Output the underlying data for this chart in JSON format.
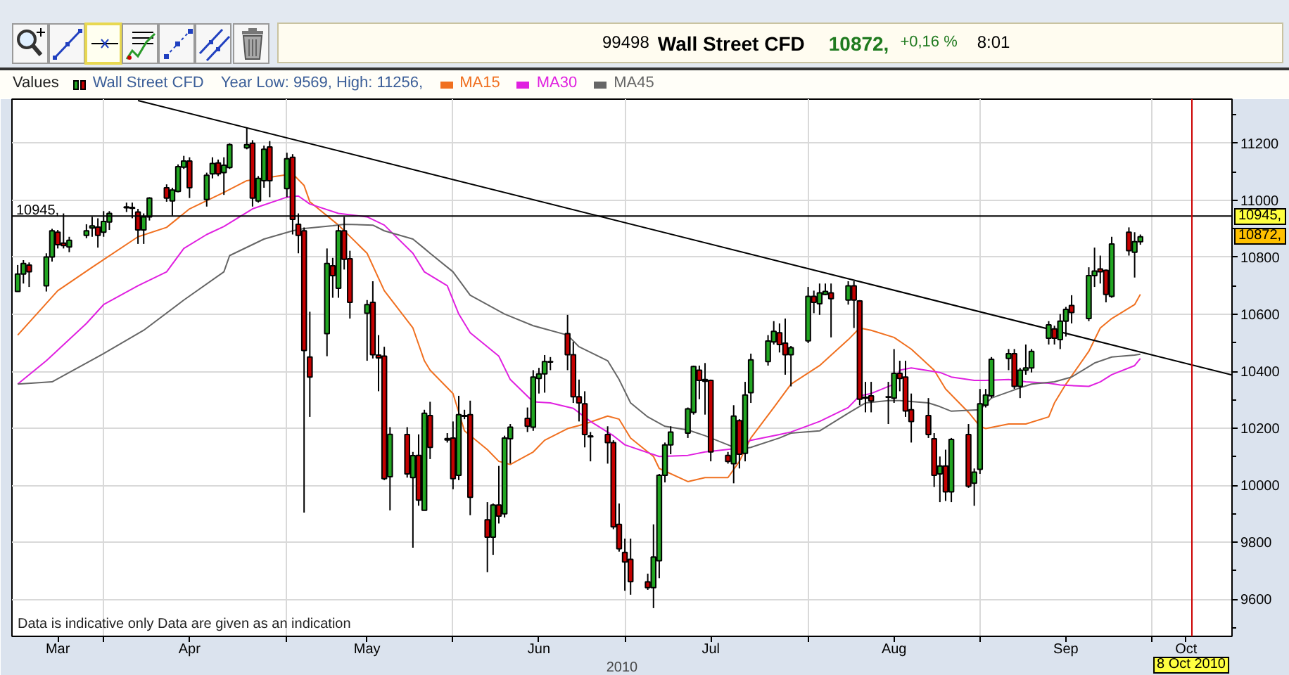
{
  "chart_data": {
    "type": "candlestick",
    "title": "Wall Street CFD",
    "subtitle": "Year Low: 9569, High: 11256,",
    "legend_title": "Values",
    "xlabel": "2010",
    "xlim": [
      "2010-03-16",
      "2010-10-15"
    ],
    "ylim": [
      9470,
      11355
    ],
    "xticks": [
      {
        "value": "2010-03-24",
        "label": "Mar"
      },
      {
        "value": "2010-04-01",
        "label": null
      },
      {
        "value": "2010-04-16",
        "label": "Apr"
      },
      {
        "value": "2010-05-03",
        "label": null
      },
      {
        "value": "2010-05-17",
        "label": "May"
      },
      {
        "value": "2010-06-01",
        "label": null
      },
      {
        "value": "2010-06-16",
        "label": "Jun"
      },
      {
        "value": "2010-07-01",
        "label": null
      },
      {
        "value": "2010-07-16",
        "label": "Jul"
      },
      {
        "value": "2010-08-02",
        "label": null
      },
      {
        "value": "2010-08-17",
        "label": "Aug"
      },
      {
        "value": "2010-09-01",
        "label": null
      },
      {
        "value": "2010-09-16",
        "label": "Sep"
      },
      {
        "value": "2010-10-01",
        "label": null
      },
      {
        "value": "2010-10-07",
        "label": "Oct"
      }
    ],
    "yticks": [
      9600,
      9800,
      10000,
      10200,
      10400,
      10600,
      10800,
      11000,
      11200
    ],
    "grid": true,
    "legend": "top left",
    "series": [
      {
        "name": "Wall Street CFD",
        "x": [
          "2010-03-17",
          "2010-03-18",
          "2010-03-19",
          "2010-03-22",
          "2010-03-23",
          "2010-03-24",
          "2010-03-25",
          "2010-03-26",
          "2010-03-29",
          "2010-03-30",
          "2010-03-31",
          "2010-04-01",
          "2010-04-02",
          "2010-04-05",
          "2010-04-06",
          "2010-04-07",
          "2010-04-08",
          "2010-04-09",
          "2010-04-12",
          "2010-04-13",
          "2010-04-14",
          "2010-04-15",
          "2010-04-16",
          "2010-04-19",
          "2010-04-20",
          "2010-04-21",
          "2010-04-22",
          "2010-04-23",
          "2010-04-26",
          "2010-04-27",
          "2010-04-28",
          "2010-04-29",
          "2010-04-30",
          "2010-05-03",
          "2010-05-04",
          "2010-05-05",
          "2010-05-06",
          "2010-05-07",
          "2010-05-10",
          "2010-05-11",
          "2010-05-12",
          "2010-05-13",
          "2010-05-14",
          "2010-05-17",
          "2010-05-18",
          "2010-05-19",
          "2010-05-20",
          "2010-05-21",
          "2010-05-24",
          "2010-05-25",
          "2010-05-26",
          "2010-05-27",
          "2010-05-28",
          "2010-05-31",
          "2010-06-01",
          "2010-06-02",
          "2010-06-03",
          "2010-06-04",
          "2010-06-07",
          "2010-06-08",
          "2010-06-09",
          "2010-06-10",
          "2010-06-11",
          "2010-06-14",
          "2010-06-15",
          "2010-06-16",
          "2010-06-17",
          "2010-06-18",
          "2010-06-21",
          "2010-06-22",
          "2010-06-23",
          "2010-06-24",
          "2010-06-25",
          "2010-06-28",
          "2010-06-29",
          "2010-06-30",
          "2010-07-01",
          "2010-07-02",
          "2010-07-05",
          "2010-07-06",
          "2010-07-07",
          "2010-07-08",
          "2010-07-09",
          "2010-07-12",
          "2010-07-13",
          "2010-07-14",
          "2010-07-15",
          "2010-07-16",
          "2010-07-19",
          "2010-07-20",
          "2010-07-21",
          "2010-07-22",
          "2010-07-23",
          "2010-07-26",
          "2010-07-27",
          "2010-07-28",
          "2010-07-29",
          "2010-07-30",
          "2010-08-02",
          "2010-08-03",
          "2010-08-04",
          "2010-08-05",
          "2010-08-06",
          "2010-08-09",
          "2010-08-10",
          "2010-08-11",
          "2010-08-12",
          "2010-08-13",
          "2010-08-16",
          "2010-08-17",
          "2010-08-18",
          "2010-08-19",
          "2010-08-20",
          "2010-08-23",
          "2010-08-24",
          "2010-08-25",
          "2010-08-26",
          "2010-08-27",
          "2010-08-30",
          "2010-08-31",
          "2010-09-01",
          "2010-09-02",
          "2010-09-03",
          "2010-09-06",
          "2010-09-07",
          "2010-09-08",
          "2010-09-09",
          "2010-09-10",
          "2010-09-13",
          "2010-09-14",
          "2010-09-15",
          "2010-09-16",
          "2010-09-17",
          "2010-09-20",
          "2010-09-21",
          "2010-09-22",
          "2010-09-23",
          "2010-09-24",
          "2010-09-27",
          "2010-09-28",
          "2010-09-29"
        ],
        "ohlc": [
          [
            10680,
            10773,
            10680,
            10741
          ],
          [
            10741,
            10790,
            10708,
            10778
          ],
          [
            10773,
            10782,
            10696,
            10749
          ],
          [
            10700,
            10814,
            10680,
            10801
          ],
          [
            10801,
            10900,
            10785,
            10893
          ],
          [
            10888,
            10896,
            10831,
            10844
          ],
          [
            10850,
            10954,
            10831,
            10841
          ],
          [
            10836,
            10872,
            10818,
            10860
          ],
          [
            10877,
            10916,
            10867,
            10893
          ],
          [
            10903,
            10942,
            10872,
            10910
          ],
          [
            10906,
            10937,
            10834,
            10877
          ],
          [
            10888,
            10962,
            10872,
            10926
          ],
          [
            10924,
            10962,
            10896,
            10954
          ],
          [
            10977,
            10992,
            10959,
            10974
          ],
          [
            10975,
            10992,
            10937,
            10972
          ],
          [
            10959,
            10970,
            10847,
            10896
          ],
          [
            10896,
            10954,
            10847,
            10942
          ],
          [
            10942,
            11011,
            10929,
            11008
          ],
          [
            11044,
            11056,
            10995,
            11008
          ],
          [
            10998,
            11044,
            10946,
            11036
          ],
          [
            11031,
            11126,
            11028,
            11118
          ],
          [
            11116,
            11156,
            11110,
            11138
          ],
          [
            11138,
            11151,
            11008,
            11044
          ],
          [
            11003,
            11097,
            10978,
            11088
          ],
          [
            11093,
            11151,
            11077,
            11129
          ],
          [
            11131,
            11143,
            11085,
            11093
          ],
          [
            11097,
            11151,
            11019,
            11123
          ],
          [
            11115,
            11200,
            11110,
            11195
          ],
          [
            11184,
            11256,
            11179,
            11195
          ],
          [
            11200,
            11211,
            10978,
            11008
          ],
          [
            10998,
            11085,
            10992,
            11077
          ],
          [
            11069,
            11192,
            11044,
            11179
          ],
          [
            11187,
            11208,
            11011,
            11069
          ],
          [
            11041,
            11167,
            11011,
            11146
          ],
          [
            11151,
            11162,
            10880,
            10933
          ],
          [
            10916,
            10954,
            10814,
            10877
          ],
          [
            10893,
            10905,
            9904,
            10473
          ],
          [
            10450,
            10609,
            10240,
            10380
          ],
          [
            10532,
            10831,
            10453,
            10778
          ],
          [
            10770,
            10798,
            10658,
            10736
          ],
          [
            10691,
            10913,
            10658,
            10893
          ],
          [
            10893,
            10942,
            10757,
            10793
          ],
          [
            10795,
            10823,
            10585,
            10642
          ],
          [
            10604,
            10650,
            10437,
            10634
          ],
          [
            10642,
            10716,
            10445,
            10458
          ],
          [
            10457,
            10527,
            10330,
            10447
          ],
          [
            10453,
            10486,
            10018,
            10023
          ],
          [
            10030,
            10204,
            9912,
            10179
          ],
          [
            10178,
            10204,
            10027,
            10040
          ],
          [
            10027,
            10117,
            9781,
            10104
          ],
          [
            10105,
            10179,
            9928,
            9948
          ],
          [
            9912,
            10265,
            9912,
            10253
          ],
          [
            10245,
            10293,
            10092,
            10133
          ],
          [
            10164,
            10183,
            10150,
            10159
          ],
          [
            10166,
            10224,
            9986,
            10023
          ],
          [
            10035,
            10314,
            10018,
            10248
          ],
          [
            10245,
            10265,
            10232,
            10242
          ],
          [
            10248,
            10297,
            9895,
            9958
          ],
          [
            9879,
            9941,
            9695,
            9818
          ],
          [
            9818,
            9936,
            9756,
            9931
          ],
          [
            9931,
            10068,
            9866,
            9892
          ],
          [
            9900,
            10174,
            9887,
            10166
          ],
          [
            10163,
            10215,
            10076,
            10204
          ],
          [
            10235,
            10273,
            10187,
            10207
          ],
          [
            10204,
            10404,
            10191,
            10380
          ],
          [
            10375,
            10412,
            10322,
            10391
          ],
          [
            10391,
            10457,
            10325,
            10434
          ],
          [
            10434,
            10450,
            10404,
            10432
          ],
          [
            10532,
            10598,
            10404,
            10458
          ],
          [
            10458,
            10503,
            10289,
            10311
          ],
          [
            10311,
            10371,
            10224,
            10289
          ],
          [
            10286,
            10330,
            10133,
            10178
          ],
          [
            10173,
            10187,
            10084,
            10170
          ],
          [
            10178,
            10207,
            10076,
            10150
          ],
          [
            10150,
            10158,
            9846,
            9854
          ],
          [
            9863,
            9936,
            9767,
            9777
          ],
          [
            9764,
            9813,
            9630,
            9731
          ],
          [
            9740,
            9813,
            9616,
            9662
          ],
          [
            9661,
            9690,
            9633,
            9641
          ],
          [
            9641,
            9863,
            9569,
            9748
          ],
          [
            9735,
            10040,
            9674,
            10035
          ],
          [
            10035,
            10150,
            10010,
            10142
          ],
          [
            10142,
            10207,
            10109,
            10187
          ],
          [
            10183,
            10273,
            10166,
            10268
          ],
          [
            10256,
            10420,
            10248,
            10417
          ],
          [
            10404,
            10420,
            10302,
            10368
          ],
          [
            10371,
            10429,
            10248,
            10365
          ],
          [
            10368,
            10371,
            10084,
            10117
          ],
          [
            10105,
            10117,
            10076,
            10084
          ],
          [
            10076,
            10281,
            10007,
            10243
          ],
          [
            10227,
            10232,
            10059,
            10109
          ],
          [
            10112,
            10363,
            10084,
            10317
          ],
          [
            10325,
            10462,
            10289,
            10440
          ],
          [
            10434,
            10527,
            10420,
            10506
          ],
          [
            10503,
            10576,
            10494,
            10540
          ],
          [
            10535,
            10568,
            10466,
            10494
          ],
          [
            10499,
            10585,
            10388,
            10458
          ],
          [
            10458,
            10489,
            10347,
            10483
          ],
          [
            10507,
            10696,
            10499,
            10663
          ],
          [
            10663,
            10683,
            10604,
            10642
          ],
          [
            10637,
            10708,
            10598,
            10675
          ],
          [
            10670,
            10708,
            10667,
            10680
          ],
          [
            10675,
            10708,
            10519,
            10655
          ],
          [
            10650,
            10716,
            10634,
            10700
          ],
          [
            10700,
            10716,
            10552,
            10650
          ],
          [
            10647,
            10650,
            10281,
            10302
          ],
          [
            10309,
            10363,
            10256,
            10306
          ],
          [
            10314,
            10363,
            10256,
            10296
          ],
          [
            10309,
            10363,
            10215,
            10311
          ],
          [
            10306,
            10478,
            10289,
            10393
          ],
          [
            10393,
            10437,
            10330,
            10375
          ],
          [
            10380,
            10437,
            10240,
            10261
          ],
          [
            10265,
            10322,
            10150,
            10224
          ],
          [
            10245,
            10306,
            10166,
            10178
          ],
          [
            10163,
            10183,
            9994,
            10035
          ],
          [
            10040,
            10101,
            9941,
            10068
          ],
          [
            10068,
            10125,
            9945,
            9977
          ],
          [
            9977,
            10166,
            9941,
            10161
          ],
          [
            10178,
            10215,
            9991,
            9997
          ],
          [
            10007,
            10059,
            9928,
            10046
          ],
          [
            10056,
            10338,
            10040,
            10286
          ],
          [
            10281,
            10338,
            10273,
            10317
          ],
          [
            10314,
            10450,
            10306,
            10442
          ],
          [
            10445,
            10478,
            10404,
            10462
          ],
          [
            10462,
            10478,
            10338,
            10347
          ],
          [
            10347,
            10412,
            10306,
            10404
          ],
          [
            10404,
            10494,
            10388,
            10412
          ],
          [
            10412,
            10478,
            10396,
            10470
          ],
          [
            10516,
            10576,
            10494,
            10563
          ],
          [
            10549,
            10560,
            10494,
            10516
          ],
          [
            10511,
            10601,
            10478,
            10576
          ],
          [
            10576,
            10626,
            10522,
            10617
          ],
          [
            10631,
            10667,
            10568,
            10606
          ],
          [
            10585,
            10765,
            10576,
            10736
          ],
          [
            10736,
            10834,
            10696,
            10752
          ],
          [
            10759,
            10806,
            10708,
            10749
          ],
          [
            10754,
            10757,
            10642,
            10670
          ],
          [
            10663,
            10872,
            10658,
            10847
          ],
          [
            10888,
            10905,
            10806,
            10823
          ],
          [
            10818,
            10888,
            10729,
            10855
          ],
          [
            10855,
            10880,
            10844,
            10872
          ]
        ],
        "colors": [
          "#22a622",
          "#22a622",
          "#c40000",
          "#22a622",
          "#22a622",
          "#c40000",
          "#c40000",
          "#22a622",
          "#22a622",
          "#22a622",
          "#c40000",
          "#22a622",
          "#22a622",
          "#000000",
          "#000000",
          "#c40000",
          "#22a622",
          "#22a622",
          "#c40000",
          "#22a622",
          "#22a622",
          "#22a622",
          "#c40000",
          "#22a622",
          "#22a622",
          "#c40000",
          "#22a622",
          "#22a622",
          "#22a622",
          "#c40000",
          "#22a622",
          "#22a622",
          "#c40000",
          "#22a622",
          "#c40000",
          "#c40000",
          "#c40000",
          "#c40000",
          "#22a622",
          "#c40000",
          "#22a622",
          "#c40000",
          "#c40000",
          "#22a622",
          "#c40000",
          "#c40000",
          "#c40000",
          "#22a622",
          "#c40000",
          "#22a622",
          "#c40000",
          "#22a622",
          "#c40000",
          "#000000",
          "#c40000",
          "#22a622",
          "#000000",
          "#c40000",
          "#c40000",
          "#22a622",
          "#c40000",
          "#22a622",
          "#22a622",
          "#c40000",
          "#22a622",
          "#22a622",
          "#22a622",
          "#000000",
          "#c40000",
          "#c40000",
          "#c40000",
          "#c40000",
          "#000000",
          "#c40000",
          "#c40000",
          "#c40000",
          "#c40000",
          "#c40000",
          "#c40000",
          "#22a622",
          "#22a622",
          "#22a622",
          "#22a622",
          "#22a622",
          "#22a622",
          "#c40000",
          "#000000",
          "#c40000",
          "#c40000",
          "#22a622",
          "#c40000",
          "#22a622",
          "#22a622",
          "#22a622",
          "#22a622",
          "#c40000",
          "#c40000",
          "#22a622",
          "#22a622",
          "#c40000",
          "#22a622",
          "#22a622",
          "#c40000",
          "#22a622",
          "#c40000",
          "#c40000",
          "#000000",
          "#c40000",
          "#000000",
          "#22a622",
          "#c40000",
          "#c40000",
          "#c40000",
          "#c40000",
          "#c40000",
          "#22a622",
          "#c40000",
          "#22a622",
          "#c40000",
          "#22a622",
          "#22a622",
          "#22a622",
          "#22a622",
          "#22a622",
          "#c40000",
          "#22a622",
          "#22a622",
          "#22a622",
          "#22a622",
          "#c40000",
          "#22a622",
          "#22a622",
          "#c40000",
          "#22a622",
          "#22a622",
          "#c40000",
          "#c40000",
          "#22a622",
          "#c40000",
          "#22a622",
          "#22a622"
        ]
      },
      {
        "type": "line",
        "name": "MA15",
        "color": "#f07020",
        "x": [
          "2010-03-17",
          "2010-03-24",
          "2010-03-30",
          "2010-04-07",
          "2010-04-12",
          "2010-04-16",
          "2010-04-22",
          "2010-04-26",
          "2010-05-04",
          "2010-05-06",
          "2010-05-07",
          "2010-05-12",
          "2010-05-17",
          "2010-05-20",
          "2010-05-25",
          "2010-05-27",
          "2010-05-28",
          "2010-06-01",
          "2010-06-03",
          "2010-06-07",
          "2010-06-09",
          "2010-06-11",
          "2010-06-15",
          "2010-06-17",
          "2010-06-21",
          "2010-06-24",
          "2010-06-28",
          "2010-06-30",
          "2010-07-02",
          "2010-07-06",
          "2010-07-07",
          "2010-07-12",
          "2010-07-15",
          "2010-07-19",
          "2010-07-21",
          "2010-07-23",
          "2010-07-27",
          "2010-07-30",
          "2010-08-04",
          "2010-08-09",
          "2010-08-11",
          "2010-08-13",
          "2010-08-17",
          "2010-08-20",
          "2010-08-24",
          "2010-08-26",
          "2010-08-30",
          "2010-09-01",
          "2010-09-02",
          "2010-09-06",
          "2010-09-09",
          "2010-09-13",
          "2010-09-14",
          "2010-09-16",
          "2010-09-20",
          "2010-09-22",
          "2010-09-24",
          "2010-09-28",
          "2010-09-29"
        ],
        "values": [
          10527,
          10683,
          10765,
          10872,
          10905,
          10970,
          11028,
          11069,
          11093,
          11052,
          10995,
          10913,
          10814,
          10683,
          10552,
          10437,
          10404,
          10322,
          10191,
          10125,
          10084,
          10073,
          10117,
          10158,
          10199,
          10215,
          10243,
          10232,
          10166,
          10101,
          10059,
          10013,
          10027,
          10027,
          10084,
          10166,
          10273,
          10355,
          10420,
          10511,
          10552,
          10544,
          10519,
          10478,
          10404,
          10338,
          10256,
          10207,
          10199,
          10215,
          10215,
          10240,
          10289,
          10355,
          10470,
          10552,
          10585,
          10634,
          10670
        ]
      },
      {
        "type": "line",
        "name": "MA30",
        "color": "#e020e0",
        "x": [
          "2010-03-17",
          "2010-03-22",
          "2010-03-29",
          "2010-04-01",
          "2010-04-07",
          "2010-04-12",
          "2010-04-15",
          "2010-04-19",
          "2010-04-22",
          "2010-04-27",
          "2010-05-03",
          "2010-05-05",
          "2010-05-07",
          "2010-05-12",
          "2010-05-17",
          "2010-05-20",
          "2010-05-25",
          "2010-05-27",
          "2010-05-31",
          "2010-06-02",
          "2010-06-04",
          "2010-06-09",
          "2010-06-11",
          "2010-06-15",
          "2010-06-18",
          "2010-06-22",
          "2010-06-25",
          "2010-06-29",
          "2010-07-01",
          "2010-07-07",
          "2010-07-12",
          "2010-07-15",
          "2010-07-20",
          "2010-07-23",
          "2010-07-28",
          "2010-07-30",
          "2010-08-04",
          "2010-08-09",
          "2010-08-11",
          "2010-08-13",
          "2010-08-17",
          "2010-08-18",
          "2010-08-20",
          "2010-08-25",
          "2010-08-27",
          "2010-08-31",
          "2010-09-02",
          "2010-09-06",
          "2010-09-09",
          "2010-09-13",
          "2010-09-15",
          "2010-09-20",
          "2010-09-22",
          "2010-09-24",
          "2010-09-28",
          "2010-09-29"
        ],
        "values": [
          10355,
          10437,
          10568,
          10634,
          10700,
          10749,
          10831,
          10880,
          10908,
          10970,
          11011,
          11015,
          10987,
          10954,
          10942,
          10913,
          10814,
          10749,
          10700,
          10601,
          10535,
          10453,
          10371,
          10293,
          10289,
          10270,
          10224,
          10174,
          10142,
          10101,
          10105,
          10117,
          10128,
          10158,
          10178,
          10187,
          10224,
          10273,
          10314,
          10322,
          10355,
          10404,
          10412,
          10396,
          10380,
          10368,
          10368,
          10371,
          10363,
          10358,
          10352,
          10347,
          10363,
          10388,
          10420,
          10445
        ]
      },
      {
        "type": "line",
        "name": "MA45",
        "color": "#666666",
        "x": [
          "2010-03-17",
          "2010-03-23",
          "2010-04-01",
          "2010-04-08",
          "2010-04-15",
          "2010-04-22",
          "2010-04-23",
          "2010-04-29",
          "2010-05-04",
          "2010-05-06",
          "2010-05-11",
          "2010-05-13",
          "2010-05-18",
          "2010-05-20",
          "2010-05-25",
          "2010-05-27",
          "2010-05-28",
          "2010-06-01",
          "2010-06-04",
          "2010-06-10",
          "2010-06-15",
          "2010-06-21",
          "2010-06-23",
          "2010-06-28",
          "2010-06-30",
          "2010-07-02",
          "2010-07-05",
          "2010-07-08",
          "2010-07-12",
          "2010-07-15",
          "2010-07-19",
          "2010-07-21",
          "2010-07-23",
          "2010-07-28",
          "2010-07-30",
          "2010-08-04",
          "2010-08-09",
          "2010-08-12",
          "2010-08-16",
          "2010-08-18",
          "2010-08-23",
          "2010-08-25",
          "2010-08-27",
          "2010-09-01",
          "2010-09-03",
          "2010-09-08",
          "2010-09-10",
          "2010-09-14",
          "2010-09-17",
          "2010-09-21",
          "2010-09-24",
          "2010-09-28",
          "2010-09-29"
        ],
        "values": [
          10355,
          10363,
          10462,
          10544,
          10650,
          10749,
          10806,
          10864,
          10893,
          10901,
          10911,
          10916,
          10913,
          10893,
          10864,
          10831,
          10814,
          10749,
          10667,
          10601,
          10560,
          10527,
          10486,
          10437,
          10371,
          10289,
          10240,
          10207,
          10194,
          10174,
          10142,
          10125,
          10133,
          10166,
          10183,
          10191,
          10253,
          10289,
          10297,
          10297,
          10289,
          10276,
          10260,
          10265,
          10306,
          10342,
          10355,
          10363,
          10380,
          10429,
          10450,
          10457,
          10460
        ]
      },
      {
        "type": "line",
        "color": "#000000",
        "x": [
          "2010-04-07",
          "2010-10-15"
        ],
        "values": [
          11350,
          10387
        ]
      }
    ],
    "ref_lines": [
      {
        "axis": "y",
        "value": 10945,
        "label": "10945,",
        "color": "#000000"
      },
      {
        "axis": "x",
        "value": "2010-10-08",
        "label": "8 Oct 2010",
        "color": "#cc0000"
      }
    ],
    "annotations": [
      "99498",
      "10872,",
      "+0,16 %",
      "8:01",
      "10872,",
      "Data is indicative only Data are given as an indication"
    ]
  }
}
